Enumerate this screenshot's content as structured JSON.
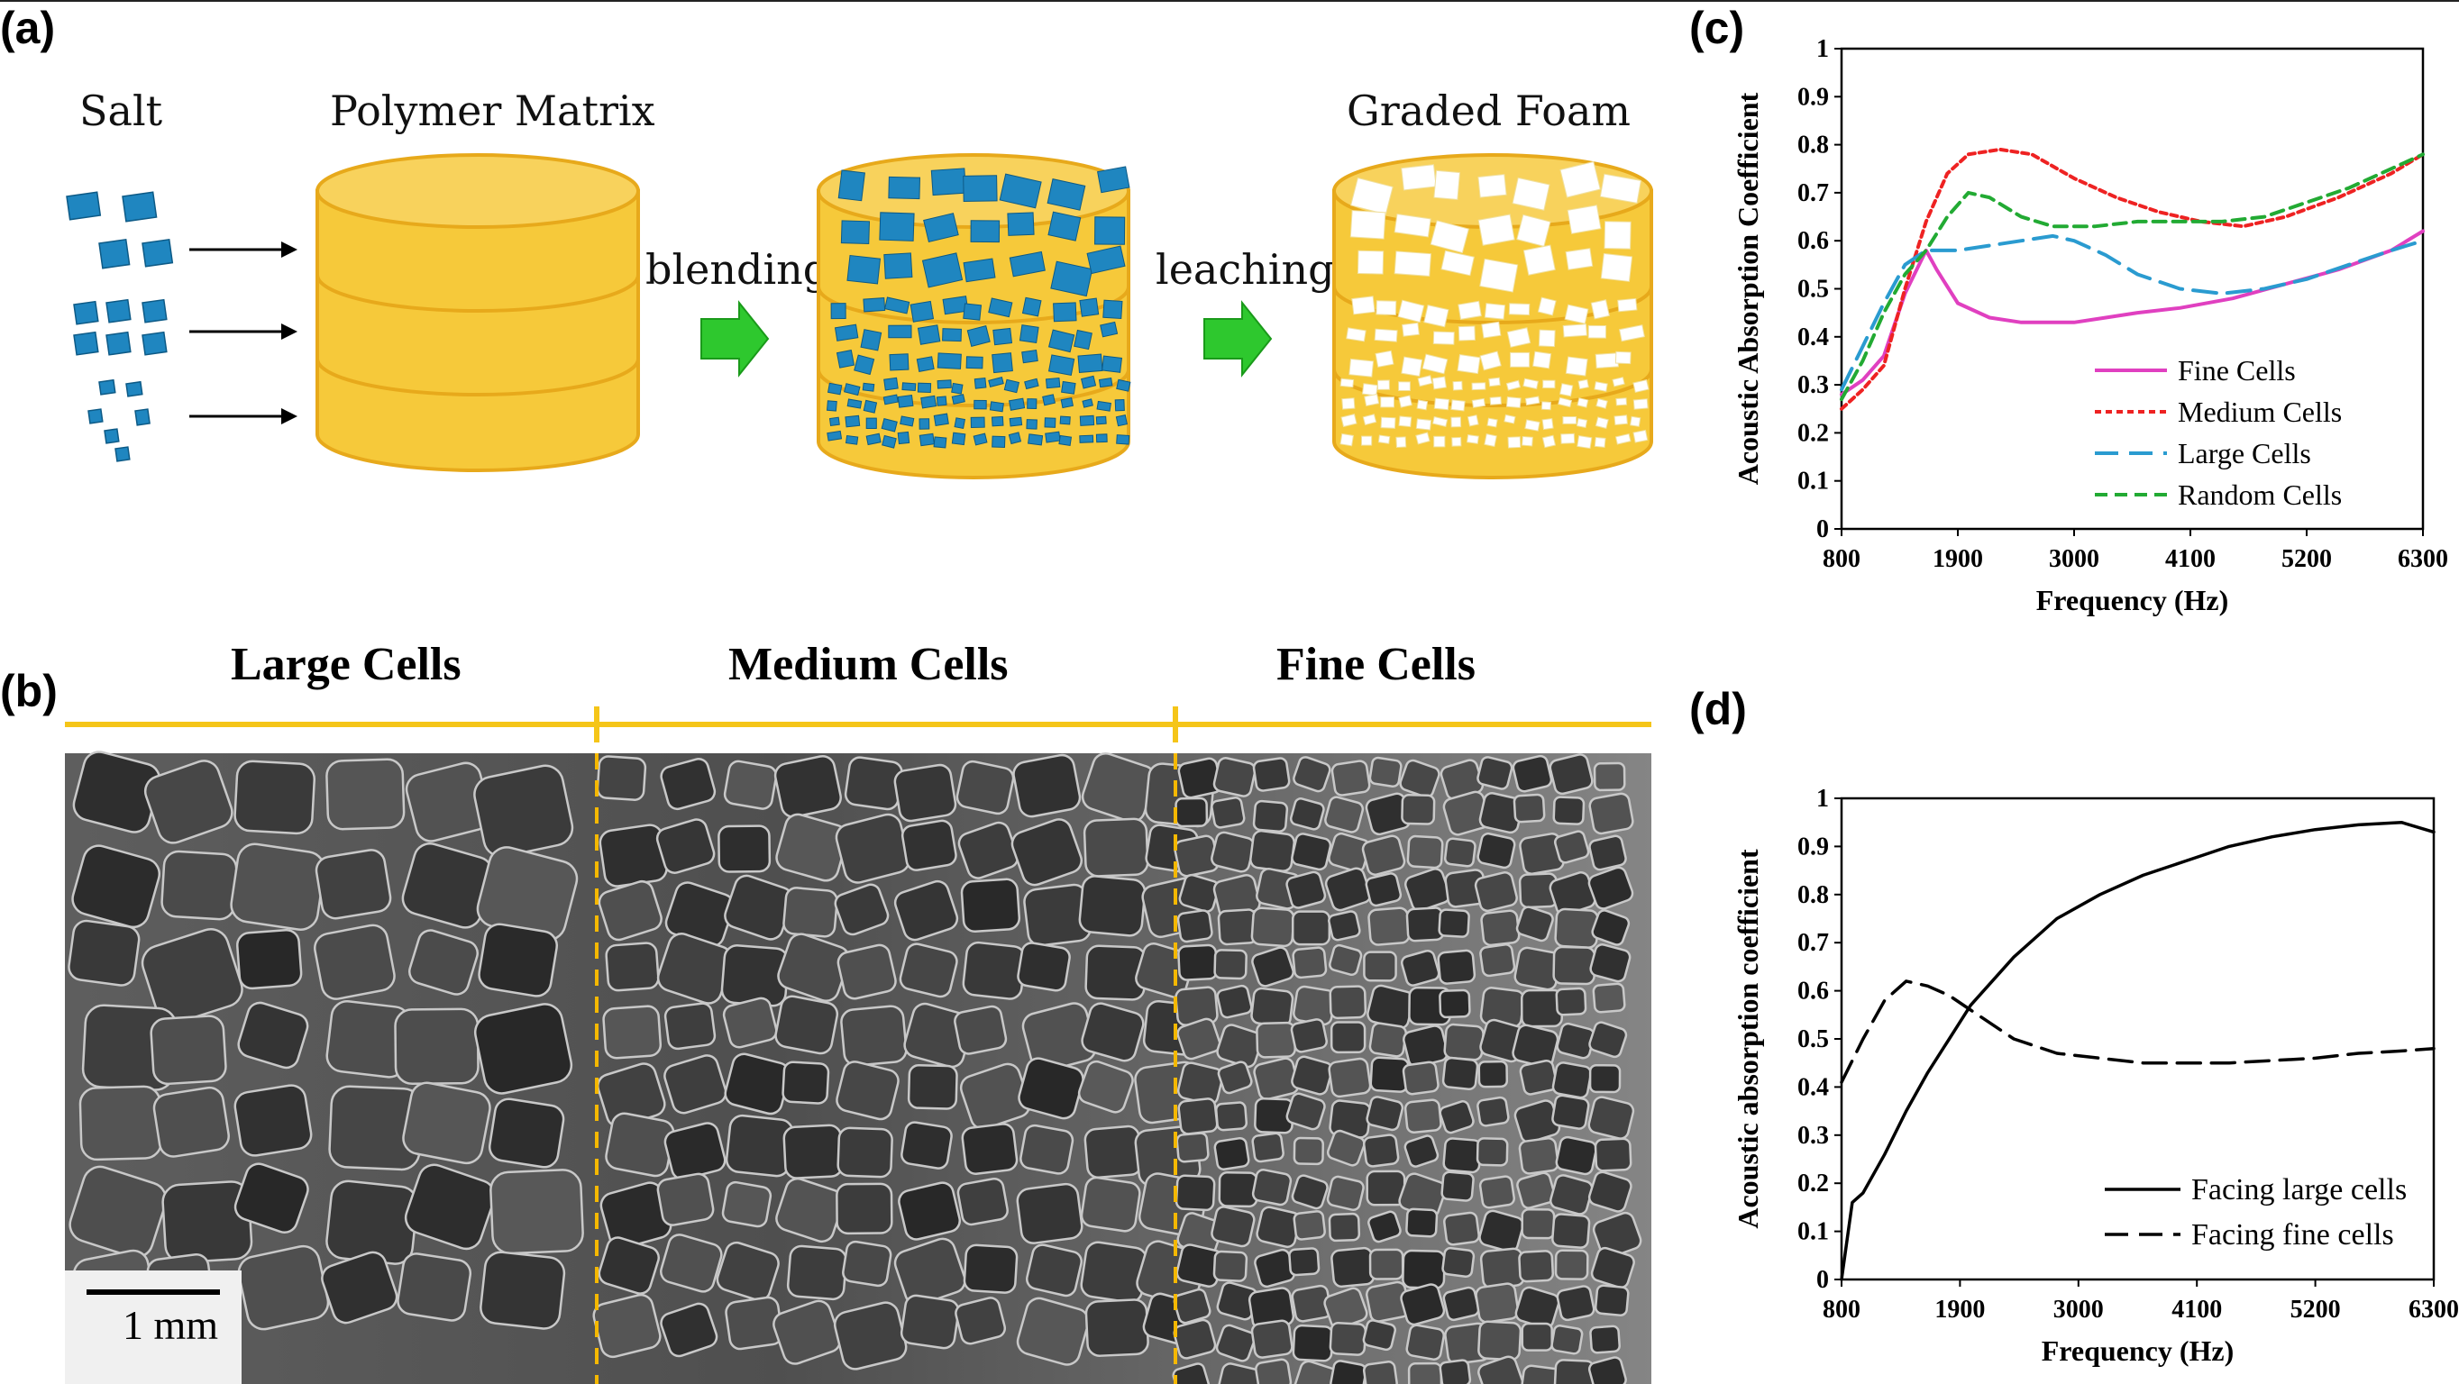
{
  "panels": {
    "a": {
      "label": "(a)"
    },
    "b": {
      "label": "(b)"
    },
    "c": {
      "label": "(c)"
    },
    "d": {
      "label": "(d)"
    }
  },
  "schematic": {
    "salt": "Salt",
    "polymer_matrix": "Polymer Matrix",
    "graded_foam": "Graded Foam",
    "blending": "blending",
    "leaching": "leaching",
    "colors": {
      "cylinder": "#f6c93a",
      "cylinder_edge": "#e7a91b",
      "salt": "#1f86c0",
      "arrow": "#2ec82e"
    }
  },
  "micrograph": {
    "regions": [
      "Large Cells",
      "Medium Cells",
      "Fine Cells"
    ],
    "scale_bar": "1 mm",
    "colors": {
      "rule": "#f5c518"
    }
  },
  "chart_data": [
    {
      "id": "c",
      "type": "line",
      "xlabel": "Frequency (Hz)",
      "ylabel": "Acoustic Absorption Coefficient",
      "xticks": [
        "800",
        "1900",
        "3000",
        "4100",
        "5200",
        "6300"
      ],
      "yticks": [
        "0",
        "0.1",
        "0.2",
        "0.3",
        "0.4",
        "0.5",
        "0.6",
        "0.7",
        "0.8",
        "0.9",
        "1"
      ],
      "xlim": [
        800,
        6300
      ],
      "ylim": [
        0,
        1
      ],
      "legend_position": "bottom-right",
      "series": [
        {
          "name": "Fine Cells",
          "color": "#e040c0",
          "dash": "solid",
          "x": [
            800,
            1000,
            1200,
            1400,
            1600,
            1700,
            1900,
            2200,
            2500,
            2800,
            3000,
            3300,
            3600,
            4000,
            4500,
            5000,
            5500,
            6000,
            6300
          ],
          "y": [
            0.28,
            0.31,
            0.36,
            0.49,
            0.58,
            0.54,
            0.47,
            0.44,
            0.43,
            0.43,
            0.43,
            0.44,
            0.45,
            0.46,
            0.48,
            0.51,
            0.54,
            0.58,
            0.62
          ]
        },
        {
          "name": "Medium Cells",
          "color": "#ee2222",
          "dash": "dot",
          "x": [
            800,
            1000,
            1200,
            1400,
            1600,
            1800,
            2000,
            2300,
            2600,
            3000,
            3400,
            3800,
            4200,
            4600,
            5000,
            5500,
            6000,
            6300
          ],
          "y": [
            0.25,
            0.29,
            0.34,
            0.5,
            0.64,
            0.74,
            0.78,
            0.79,
            0.78,
            0.73,
            0.69,
            0.66,
            0.64,
            0.63,
            0.65,
            0.69,
            0.74,
            0.78
          ]
        },
        {
          "name": "Large Cells",
          "color": "#2a9bd0",
          "dash": "longdash",
          "x": [
            800,
            1000,
            1200,
            1400,
            1600,
            1900,
            2200,
            2500,
            2800,
            3000,
            3300,
            3600,
            4000,
            4400,
            4800,
            5200,
            5600,
            6000,
            6300
          ],
          "y": [
            0.29,
            0.38,
            0.47,
            0.55,
            0.58,
            0.58,
            0.59,
            0.6,
            0.61,
            0.6,
            0.57,
            0.53,
            0.5,
            0.49,
            0.5,
            0.52,
            0.55,
            0.58,
            0.6
          ]
        },
        {
          "name": "Random Cells",
          "color": "#22aa33",
          "dash": "dash",
          "x": [
            800,
            1000,
            1200,
            1400,
            1600,
            1800,
            2000,
            2200,
            2500,
            2800,
            3200,
            3600,
            4000,
            4400,
            4800,
            5200,
            5600,
            6000,
            6300
          ],
          "y": [
            0.27,
            0.35,
            0.45,
            0.53,
            0.58,
            0.65,
            0.7,
            0.69,
            0.65,
            0.63,
            0.63,
            0.64,
            0.64,
            0.64,
            0.65,
            0.68,
            0.71,
            0.75,
            0.78
          ]
        }
      ]
    },
    {
      "id": "d",
      "type": "line",
      "xlabel": "Frequency (Hz)",
      "ylabel": "Acoustic absorption coefficient",
      "xticks": [
        "800",
        "1900",
        "3000",
        "4100",
        "5200",
        "6300"
      ],
      "yticks": [
        "0",
        "0.1",
        "0.2",
        "0.3",
        "0.4",
        "0.5",
        "0.6",
        "0.7",
        "0.8",
        "0.9",
        "1"
      ],
      "xlim": [
        800,
        6300
      ],
      "ylim": [
        0,
        1
      ],
      "legend_position": "bottom-right",
      "series": [
        {
          "name": "Facing large cells",
          "color": "#000000",
          "dash": "solid",
          "x": [
            800,
            900,
            1000,
            1200,
            1400,
            1600,
            1800,
            2000,
            2400,
            2800,
            3200,
            3600,
            4000,
            4400,
            4800,
            5200,
            5600,
            6000,
            6300
          ],
          "y": [
            0.0,
            0.16,
            0.18,
            0.26,
            0.35,
            0.43,
            0.5,
            0.57,
            0.67,
            0.75,
            0.8,
            0.84,
            0.87,
            0.9,
            0.92,
            0.935,
            0.945,
            0.95,
            0.93
          ]
        },
        {
          "name": "Facing fine cells",
          "color": "#000000",
          "dash": "longdash",
          "x": [
            800,
            1000,
            1200,
            1400,
            1600,
            1800,
            2000,
            2400,
            2800,
            3200,
            3600,
            4000,
            4400,
            4800,
            5200,
            5600,
            6000,
            6300
          ],
          "y": [
            0.41,
            0.5,
            0.58,
            0.62,
            0.61,
            0.59,
            0.56,
            0.5,
            0.47,
            0.46,
            0.45,
            0.45,
            0.45,
            0.455,
            0.46,
            0.47,
            0.475,
            0.48
          ]
        }
      ]
    }
  ]
}
